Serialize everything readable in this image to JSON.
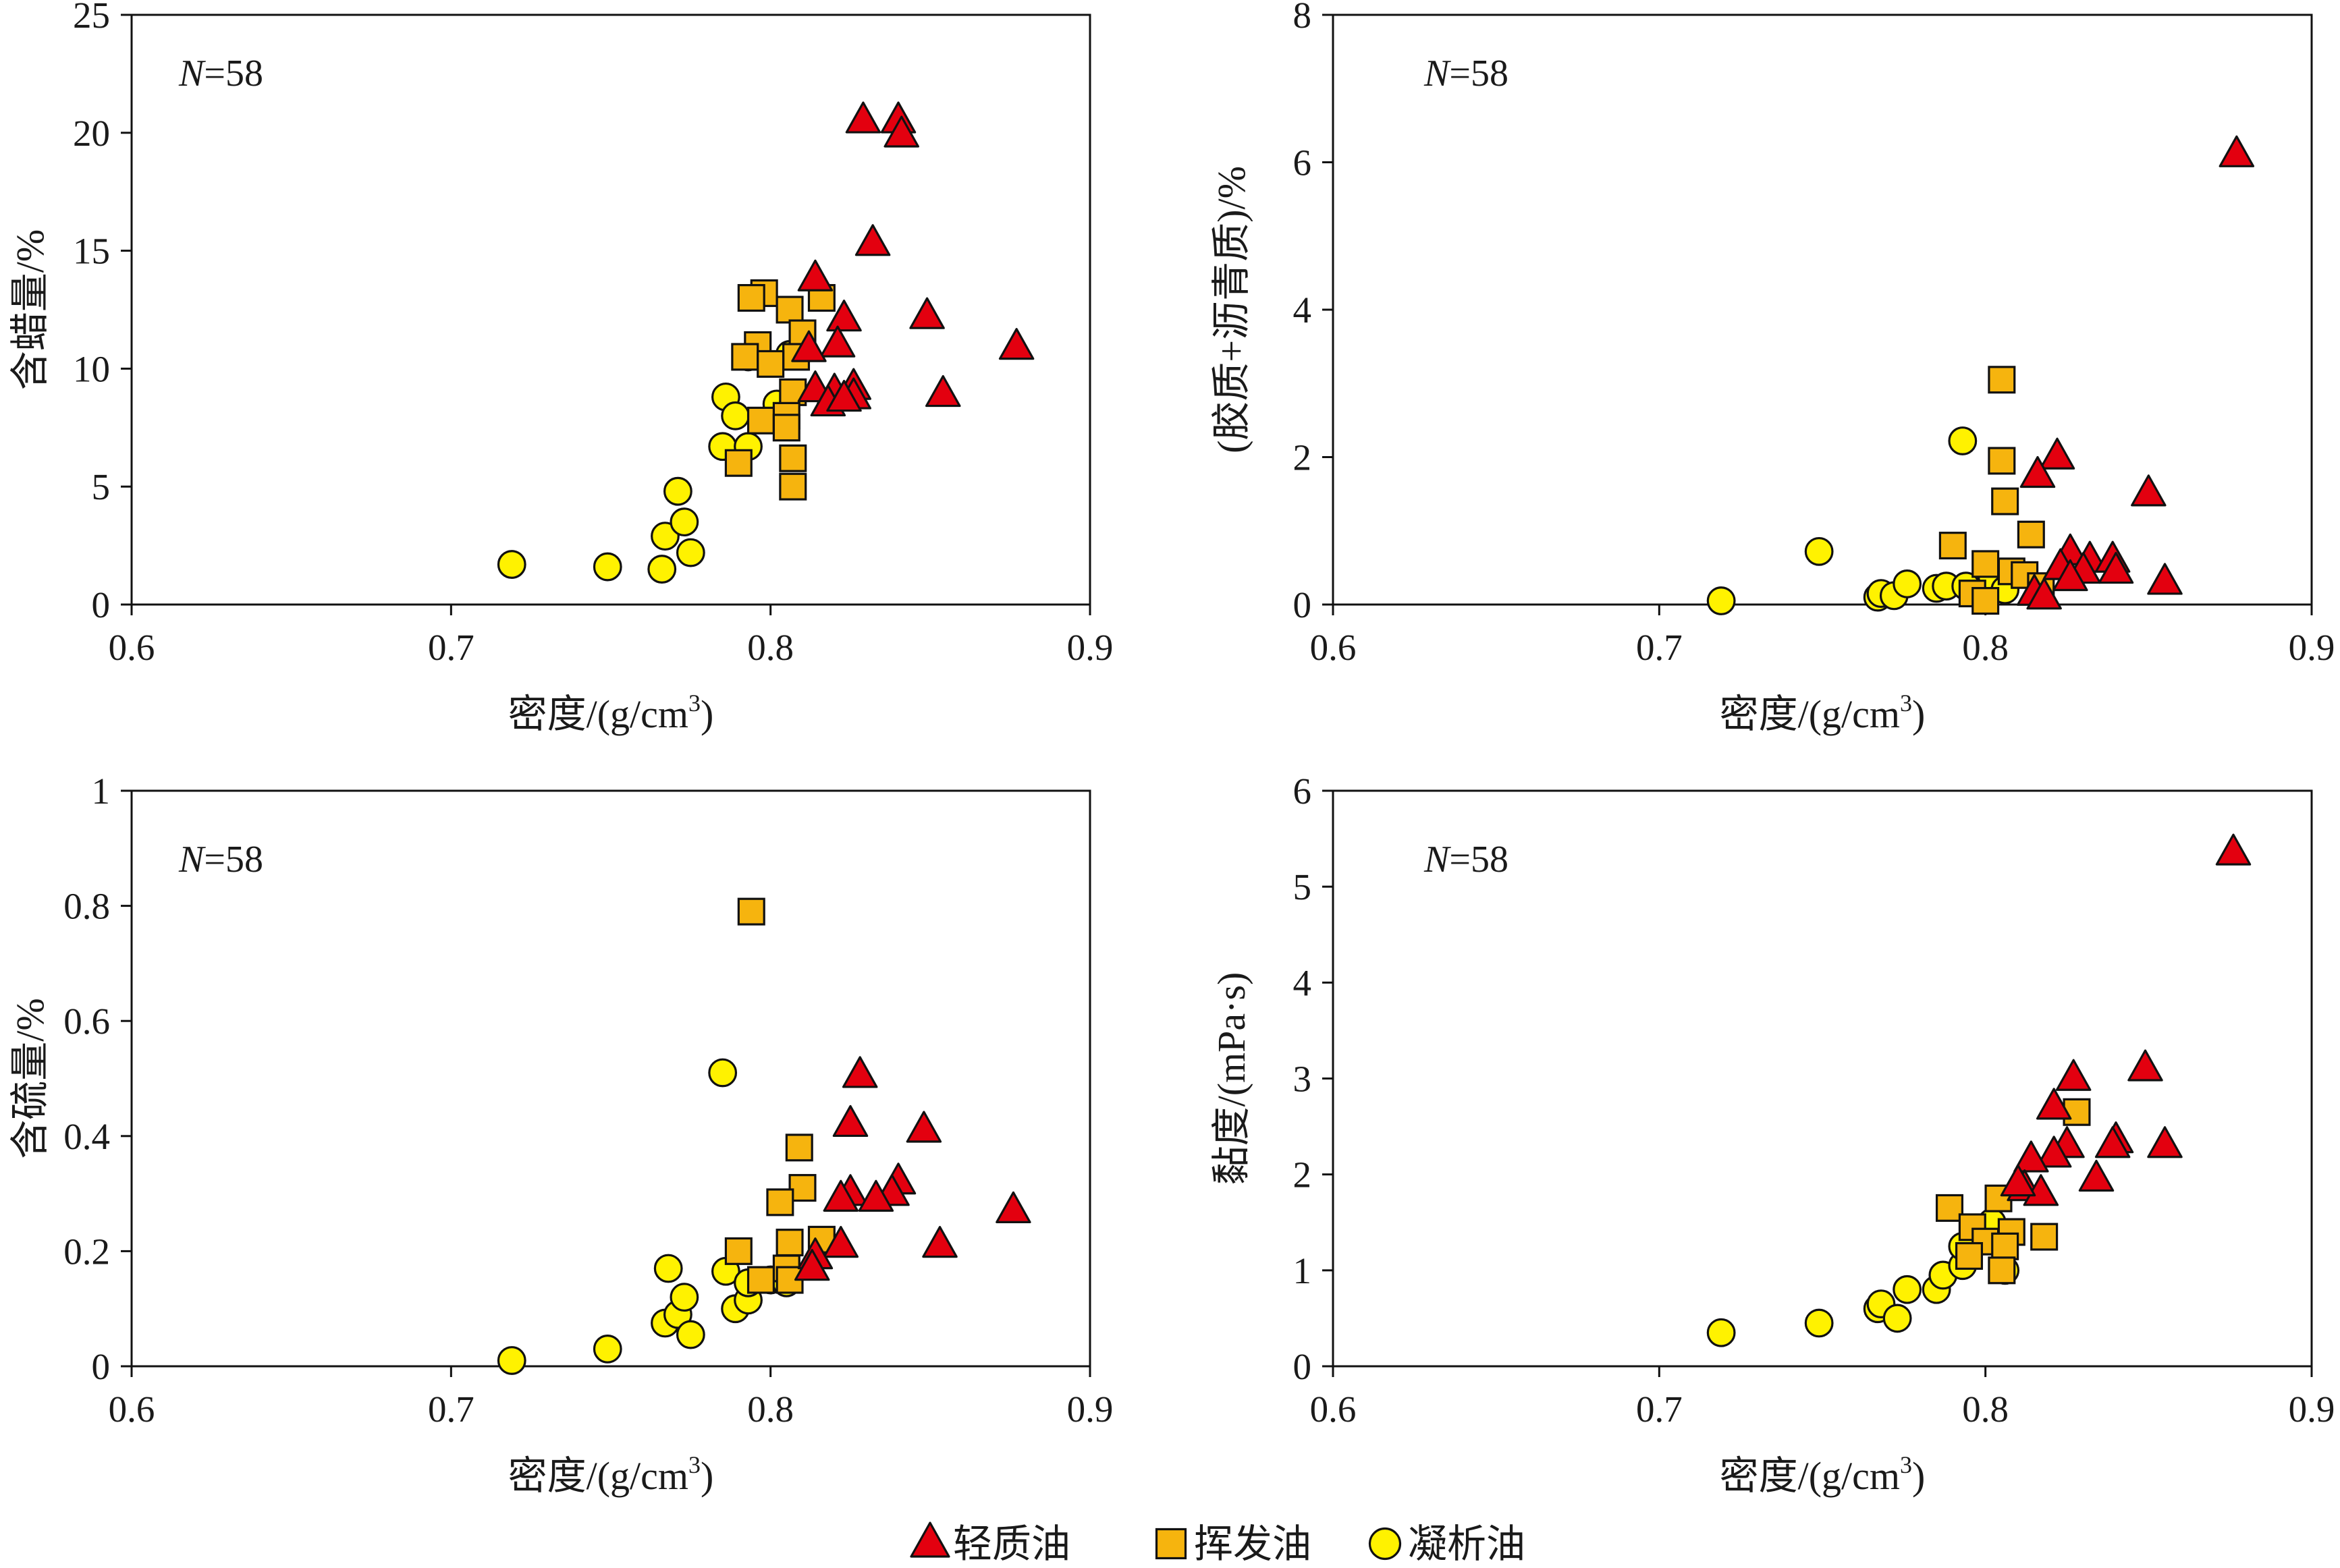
{
  "legend": [
    {
      "key": "light",
      "label": "轻质油",
      "shape": "triangle",
      "color": "#e3000f"
    },
    {
      "key": "volatile",
      "label": "挥发油",
      "shape": "square",
      "color": "#f6b40e"
    },
    {
      "key": "condensate",
      "label": "凝析油",
      "shape": "circle",
      "color": "#fff200"
    }
  ],
  "chart_data": [
    {
      "type": "scatter",
      "n_label": "N=58",
      "n_var": "N",
      "n_rest": "=58",
      "xlabel": "密度/(g/cm",
      "xlabel_sup": "3",
      "xlabel_end": ")",
      "ylabel": "含蜡量/%",
      "xlim": [
        0.6,
        0.9
      ],
      "ylim": [
        0,
        25
      ],
      "xticks": [
        "0.6",
        "0.7",
        "0.8",
        "0.9"
      ],
      "yticks": [
        "0",
        "5",
        "10",
        "15",
        "20",
        "25"
      ],
      "series": [
        {
          "key": "light",
          "points": [
            [
              0.829,
              20.5
            ],
            [
              0.84,
              20.5
            ],
            [
              0.841,
              19.9
            ],
            [
              0.832,
              15.3
            ],
            [
              0.849,
              12.2
            ],
            [
              0.877,
              10.9
            ],
            [
              0.854,
              8.9
            ],
            [
              0.814,
              13.8
            ],
            [
              0.823,
              12.1
            ],
            [
              0.821,
              11.0
            ],
            [
              0.826,
              9.2
            ],
            [
              0.82,
              9.0
            ],
            [
              0.814,
              9.1
            ],
            [
              0.826,
              8.8
            ],
            [
              0.818,
              8.5
            ],
            [
              0.823,
              8.7
            ],
            [
              0.812,
              10.8
            ]
          ]
        },
        {
          "key": "volatile",
          "points": [
            [
              0.798,
              13.2
            ],
            [
              0.816,
              13.0
            ],
            [
              0.794,
              13.0
            ],
            [
              0.806,
              12.5
            ],
            [
              0.81,
              11.5
            ],
            [
              0.796,
              11.0
            ],
            [
              0.808,
              10.5
            ],
            [
              0.792,
              10.5
            ],
            [
              0.8,
              10.2
            ],
            [
              0.807,
              9.0
            ],
            [
              0.805,
              8.0
            ],
            [
              0.797,
              7.8
            ],
            [
              0.805,
              7.5
            ],
            [
              0.807,
              6.2
            ],
            [
              0.79,
              6.0
            ],
            [
              0.807,
              5.0
            ]
          ]
        },
        {
          "key": "condensate",
          "points": [
            [
              0.719,
              1.7
            ],
            [
              0.749,
              1.6
            ],
            [
              0.766,
              1.5
            ],
            [
              0.767,
              2.9
            ],
            [
              0.771,
              4.8
            ],
            [
              0.773,
              3.5
            ],
            [
              0.775,
              2.2
            ],
            [
              0.785,
              6.7
            ],
            [
              0.786,
              8.8
            ],
            [
              0.789,
              8.0
            ],
            [
              0.793,
              6.7
            ],
            [
              0.793,
              10.5
            ],
            [
              0.802,
              8.5
            ],
            [
              0.806,
              10.6
            ]
          ]
        }
      ]
    },
    {
      "type": "scatter",
      "n_label": "N=58",
      "n_var": "N",
      "n_rest": "=58",
      "xlabel": "密度/(g/cm",
      "xlabel_sup": "3",
      "xlabel_end": ")",
      "ylabel": "(胶质+沥青质)/%",
      "xlim": [
        0.6,
        0.9
      ],
      "ylim": [
        0,
        8
      ],
      "xticks": [
        "0.6",
        "0.7",
        "0.8",
        "0.9"
      ],
      "yticks": [
        "0",
        "2",
        "4",
        "6",
        "8"
      ],
      "series": [
        {
          "key": "light",
          "points": [
            [
              0.877,
              6.1
            ],
            [
              0.85,
              1.5
            ],
            [
              0.822,
              2.0
            ],
            [
              0.816,
              1.75
            ],
            [
              0.826,
              0.7
            ],
            [
              0.832,
              0.6
            ],
            [
              0.839,
              0.6
            ],
            [
              0.823,
              0.5
            ],
            [
              0.83,
              0.45
            ],
            [
              0.84,
              0.45
            ],
            [
              0.826,
              0.35
            ],
            [
              0.855,
              0.3
            ],
            [
              0.815,
              0.15
            ],
            [
              0.818,
              0.1
            ]
          ]
        },
        {
          "key": "volatile",
          "points": [
            [
              0.805,
              3.05
            ],
            [
              0.805,
              1.95
            ],
            [
              0.806,
              1.4
            ],
            [
              0.814,
              0.95
            ],
            [
              0.79,
              0.8
            ],
            [
              0.8,
              0.55
            ],
            [
              0.808,
              0.45
            ],
            [
              0.812,
              0.4
            ],
            [
              0.817,
              0.25
            ],
            [
              0.796,
              0.15
            ],
            [
              0.8,
              0.05
            ]
          ]
        },
        {
          "key": "condensate",
          "points": [
            [
              0.719,
              0.05
            ],
            [
              0.749,
              0.72
            ],
            [
              0.767,
              0.1
            ],
            [
              0.768,
              0.15
            ],
            [
              0.772,
              0.12
            ],
            [
              0.776,
              0.28
            ],
            [
              0.785,
              0.22
            ],
            [
              0.788,
              0.25
            ],
            [
              0.793,
              2.22
            ],
            [
              0.794,
              0.25
            ],
            [
              0.802,
              0.38
            ],
            [
              0.806,
              0.2
            ]
          ]
        }
      ]
    },
    {
      "type": "scatter",
      "n_label": "N=58",
      "n_var": "N",
      "n_rest": "=58",
      "xlabel": "密度/(g/cm",
      "xlabel_sup": "3",
      "xlabel_end": ")",
      "ylabel": "含硫量/%",
      "xlim": [
        0.6,
        0.9
      ],
      "ylim": [
        0,
        1
      ],
      "xticks": [
        "0.6",
        "0.7",
        "0.8",
        "0.9"
      ],
      "yticks": [
        "0",
        "0.2",
        "0.4",
        "0.6",
        "0.8",
        "1"
      ],
      "series": [
        {
          "key": "light",
          "points": [
            [
              0.828,
              0.505
            ],
            [
              0.825,
              0.42
            ],
            [
              0.848,
              0.41
            ],
            [
              0.876,
              0.27
            ],
            [
              0.853,
              0.21
            ],
            [
              0.84,
              0.32
            ],
            [
              0.838,
              0.3
            ],
            [
              0.825,
              0.3
            ],
            [
              0.822,
              0.29
            ],
            [
              0.833,
              0.29
            ],
            [
              0.822,
              0.21
            ],
            [
              0.814,
              0.19
            ],
            [
              0.813,
              0.17
            ]
          ]
        },
        {
          "key": "volatile",
          "points": [
            [
              0.794,
              0.79
            ],
            [
              0.809,
              0.38
            ],
            [
              0.81,
              0.31
            ],
            [
              0.803,
              0.285
            ],
            [
              0.816,
              0.22
            ],
            [
              0.806,
              0.215
            ],
            [
              0.79,
              0.2
            ],
            [
              0.805,
              0.17
            ],
            [
              0.797,
              0.15
            ],
            [
              0.806,
              0.15
            ]
          ]
        },
        {
          "key": "condensate",
          "points": [
            [
              0.719,
              0.01
            ],
            [
              0.749,
              0.03
            ],
            [
              0.767,
              0.075
            ],
            [
              0.768,
              0.17
            ],
            [
              0.771,
              0.09
            ],
            [
              0.773,
              0.12
            ],
            [
              0.775,
              0.055
            ],
            [
              0.785,
              0.51
            ],
            [
              0.786,
              0.165
            ],
            [
              0.789,
              0.1
            ],
            [
              0.793,
              0.115
            ],
            [
              0.793,
              0.145
            ],
            [
              0.8,
              0.15
            ],
            [
              0.805,
              0.145
            ]
          ]
        }
      ]
    },
    {
      "type": "scatter",
      "n_label": "N=58",
      "n_var": "N",
      "n_rest": "=58",
      "xlabel": "密度/(g/cm",
      "xlabel_sup": "3",
      "xlabel_end": ")",
      "ylabel": "黏度/(mPa·s)",
      "xlim": [
        0.6,
        0.9
      ],
      "ylim": [
        0,
        6
      ],
      "xticks": [
        "0.6",
        "0.7",
        "0.8",
        "0.9"
      ],
      "yticks": [
        "0",
        "1",
        "2",
        "3",
        "4",
        "5",
        "6"
      ],
      "series": [
        {
          "key": "light",
          "points": [
            [
              0.876,
              5.35
            ],
            [
              0.849,
              3.1
            ],
            [
              0.827,
              3.0
            ],
            [
              0.821,
              2.7
            ],
            [
              0.825,
              2.3
            ],
            [
              0.821,
              2.2
            ],
            [
              0.84,
              2.35
            ],
            [
              0.839,
              2.3
            ],
            [
              0.855,
              2.3
            ],
            [
              0.814,
              2.15
            ],
            [
              0.834,
              1.95
            ],
            [
              0.812,
              1.85
            ],
            [
              0.817,
              1.8
            ],
            [
              0.81,
              1.9
            ]
          ]
        },
        {
          "key": "volatile",
          "points": [
            [
              0.828,
              2.65
            ],
            [
              0.789,
              1.65
            ],
            [
              0.804,
              1.75
            ],
            [
              0.796,
              1.45
            ],
            [
              0.808,
              1.4
            ],
            [
              0.818,
              1.35
            ],
            [
              0.8,
              1.3
            ],
            [
              0.806,
              1.25
            ],
            [
              0.795,
              1.15
            ],
            [
              0.805,
              1.0
            ]
          ]
        },
        {
          "key": "condensate",
          "points": [
            [
              0.719,
              0.35
            ],
            [
              0.749,
              0.45
            ],
            [
              0.767,
              0.6
            ],
            [
              0.768,
              0.65
            ],
            [
              0.773,
              0.5
            ],
            [
              0.776,
              0.8
            ],
            [
              0.785,
              0.8
            ],
            [
              0.787,
              0.95
            ],
            [
              0.793,
              1.05
            ],
            [
              0.793,
              1.25
            ],
            [
              0.802,
              1.5
            ],
            [
              0.806,
              1.0
            ]
          ]
        }
      ]
    }
  ]
}
